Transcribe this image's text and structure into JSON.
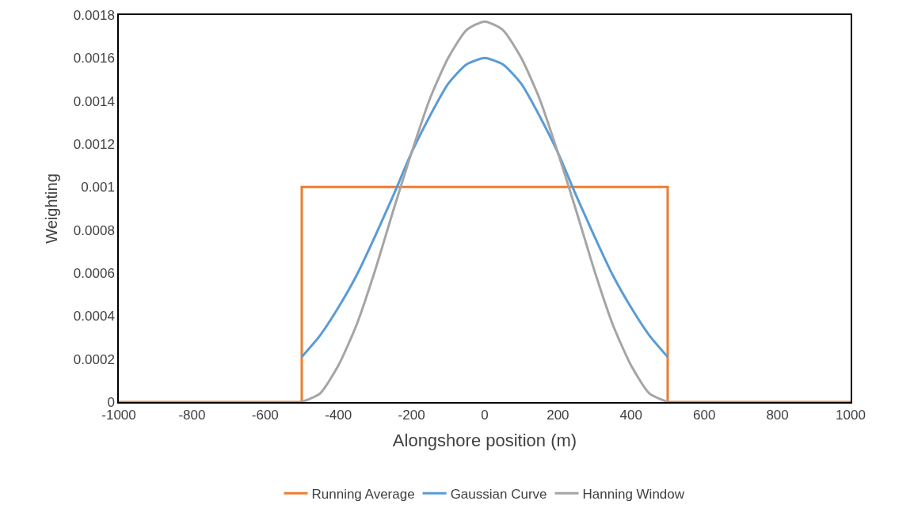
{
  "chart_data": {
    "type": "line",
    "xlabel": "Alongshore position (m)",
    "ylabel": "Weighting",
    "xlim": [
      -1000,
      1000
    ],
    "xticks": [
      -1000,
      -800,
      -600,
      -400,
      -200,
      0,
      200,
      400,
      600,
      800,
      1000
    ],
    "ylim": [
      0,
      0.0018
    ],
    "yticks": [
      0,
      0.0002,
      0.0004,
      0.0006,
      0.0008,
      0.001,
      0.0012,
      0.0014,
      0.0016,
      0.0018
    ],
    "legend": "bottom",
    "marker": "none",
    "line_style": "solid",
    "series": [
      {
        "name": "Running Average",
        "color": "#ed7d31",
        "x": [
          -1000,
          -500,
          -500,
          500,
          500,
          1000
        ],
        "values": [
          0,
          0,
          0.001,
          0.001,
          0,
          0
        ]
      },
      {
        "name": "Gaussian Curve",
        "color": "#5b9bd5",
        "x": [
          -500,
          -450,
          -400,
          -350,
          -300,
          -250,
          -200,
          -150,
          -100,
          -50,
          0,
          50,
          100,
          150,
          200,
          250,
          300,
          350,
          400,
          450,
          500
        ],
        "values": [
          0.00021,
          0.00031,
          0.00044,
          0.00059,
          0.00077,
          0.00096,
          0.00116,
          0.00133,
          0.00148,
          0.00157,
          0.0016,
          0.00157,
          0.00148,
          0.00133,
          0.00116,
          0.00096,
          0.00077,
          0.00059,
          0.00044,
          0.00031,
          0.00021
        ]
      },
      {
        "name": "Hanning Window",
        "color": "#a5a5a5",
        "x": [
          -500,
          -450,
          -400,
          -350,
          -300,
          -250,
          -200,
          -150,
          -100,
          -50,
          0,
          50,
          100,
          150,
          200,
          250,
          300,
          350,
          400,
          450,
          500
        ],
        "values": [
          0,
          4e-05,
          0.00017,
          0.00036,
          0.00061,
          0.00089,
          0.00116,
          0.00141,
          0.0016,
          0.00173,
          0.00177,
          0.00173,
          0.0016,
          0.00141,
          0.00116,
          0.00089,
          0.00061,
          0.00036,
          0.00017,
          4e-05,
          0
        ]
      }
    ]
  }
}
